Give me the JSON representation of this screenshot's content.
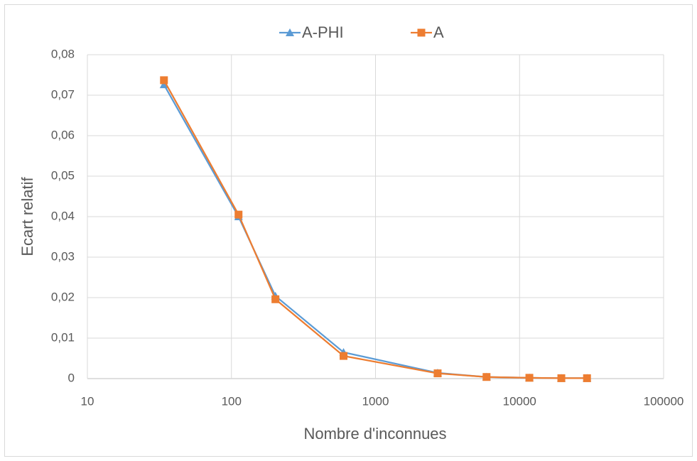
{
  "chart_data": {
    "type": "line",
    "xlabel": "Nombre d'inconnues",
    "ylabel": "Ecart relatif",
    "x": [
      34,
      112,
      202,
      600,
      2700,
      5900,
      11700,
      19500,
      29400
    ],
    "series": [
      {
        "name": "A-PHI",
        "color": "#5b9bd5",
        "marker": "triangle",
        "values": [
          0.0726,
          0.04,
          0.0204,
          0.0065,
          0.0014,
          0.0004,
          0.0002,
          0.0001,
          0.0001
        ]
      },
      {
        "name": "A",
        "color": "#ed7d31",
        "marker": "square",
        "values": [
          0.0737,
          0.0405,
          0.0196,
          0.0056,
          0.0013,
          0.0004,
          0.0002,
          0.0001,
          0.0001
        ]
      }
    ],
    "xscale": "log",
    "xlim": [
      10,
      100000
    ],
    "xticks": [
      10,
      100,
      1000,
      10000,
      100000
    ],
    "ylim": [
      0,
      0.08
    ],
    "yticks": [
      {
        "value": 0,
        "label": "0"
      },
      {
        "value": 0.01,
        "label": "0,01"
      },
      {
        "value": 0.02,
        "label": "0,02"
      },
      {
        "value": 0.03,
        "label": "0,03"
      },
      {
        "value": 0.04,
        "label": "0,04"
      },
      {
        "value": 0.05,
        "label": "0,05"
      },
      {
        "value": 0.06,
        "label": "0,06"
      },
      {
        "value": 0.07,
        "label": "0,07"
      },
      {
        "value": 0.08,
        "label": "0,08"
      }
    ],
    "grid": true,
    "legend": "top"
  }
}
